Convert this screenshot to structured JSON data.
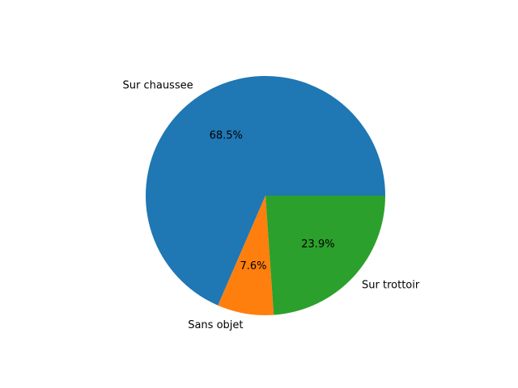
{
  "chart_data": {
    "type": "pie",
    "slices": [
      {
        "label": "Sur chaussee",
        "value": 68.5,
        "pct_label": "68.5%",
        "color": "#1f77b4"
      },
      {
        "label": "Sans objet",
        "value": 7.6,
        "pct_label": "7.6%",
        "color": "#ff7f0e"
      },
      {
        "label": "Sur trottoir",
        "value": 23.9,
        "pct_label": "23.9%",
        "color": "#2ca02c"
      }
    ],
    "start_angle": 0,
    "direction": "counterclockwise",
    "legend": "none"
  }
}
